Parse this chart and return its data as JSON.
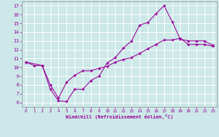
{
  "xlabel": "Windchill (Refroidissement éolien,°C)",
  "bg_color": "#cce8e8",
  "grid_color": "#ffffff",
  "line_color": "#990099",
  "xlim": [
    -0.5,
    23.5
  ],
  "ylim": [
    5.5,
    17.5
  ],
  "xticks": [
    0,
    1,
    2,
    3,
    4,
    5,
    6,
    7,
    8,
    9,
    10,
    11,
    12,
    13,
    14,
    15,
    16,
    17,
    18,
    19,
    20,
    21,
    22,
    23
  ],
  "yticks": [
    6,
    7,
    8,
    9,
    10,
    11,
    12,
    13,
    14,
    15,
    16,
    17
  ],
  "series1_x": [
    0,
    1,
    2,
    3,
    4,
    5,
    6,
    7,
    8,
    9,
    10,
    11,
    12,
    13,
    14,
    15,
    16,
    17,
    18,
    19,
    20,
    21,
    22,
    23
  ],
  "series1_y": [
    10.6,
    10.2,
    10.2,
    7.5,
    6.2,
    6.1,
    7.5,
    7.5,
    8.5,
    9.0,
    10.5,
    11.1,
    12.2,
    13.0,
    14.8,
    15.1,
    16.1,
    17.0,
    15.2,
    13.2,
    13.0,
    13.0,
    13.0,
    12.5
  ],
  "series2_x": [
    0,
    2,
    3,
    4,
    5,
    6,
    7,
    8,
    9,
    10,
    11,
    12,
    13,
    14,
    15,
    16,
    17,
    18,
    19,
    20,
    21,
    22,
    23
  ],
  "series2_y": [
    10.6,
    10.2,
    8.0,
    6.5,
    8.3,
    9.1,
    9.6,
    9.6,
    9.9,
    10.1,
    10.6,
    10.9,
    11.1,
    11.6,
    12.1,
    12.6,
    13.1,
    13.1,
    13.3,
    12.6,
    12.6,
    12.6,
    12.4
  ]
}
